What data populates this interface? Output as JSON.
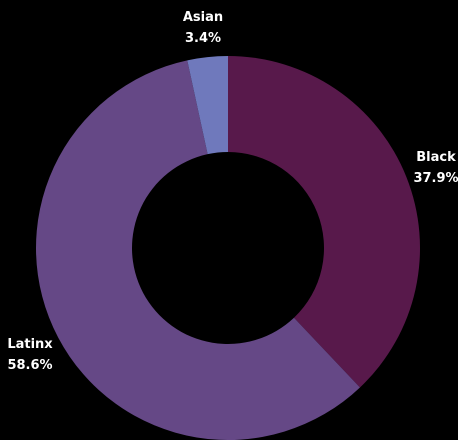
{
  "chart_data": {
    "type": "pie",
    "variant": "donut",
    "categories": [
      "Black",
      "Latinx",
      "Asian"
    ],
    "values": [
      37.9,
      58.6,
      3.4
    ],
    "value_labels": [
      "37.9%",
      "58.6%",
      "3.4%"
    ],
    "colors": {
      "Black": "#58194B",
      "Latinx": "#654886",
      "Asian": "#6F79BC"
    },
    "background": "#000000",
    "label_color": "#FFFFFF",
    "title": "",
    "legend": "none"
  }
}
